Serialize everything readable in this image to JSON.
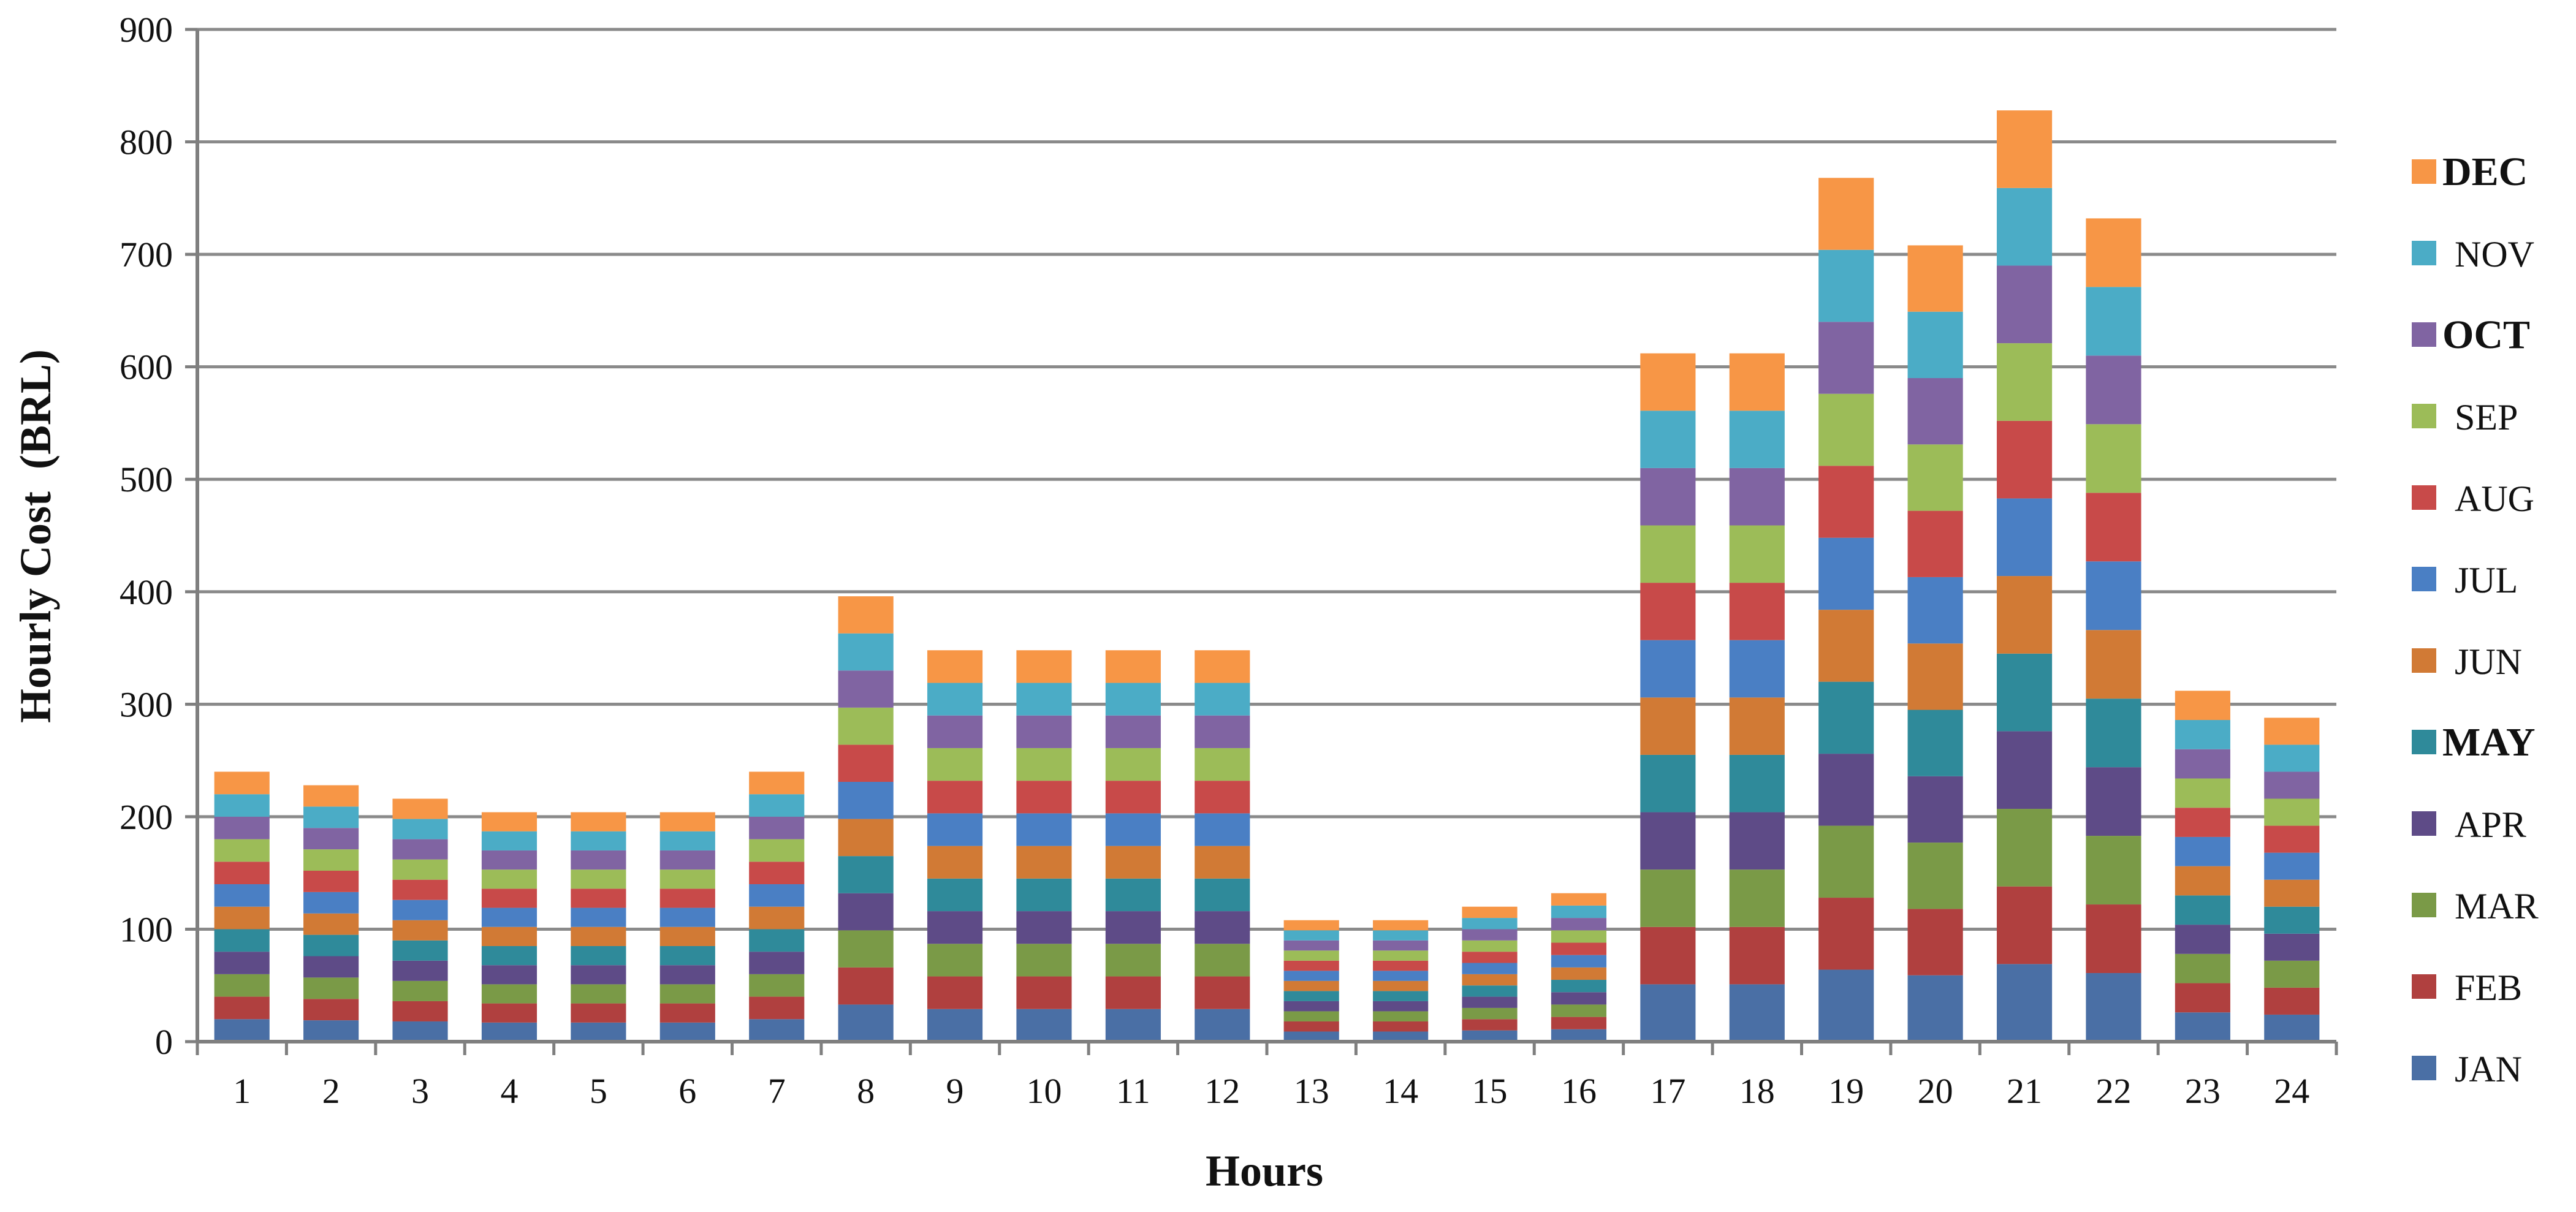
{
  "chart_data": {
    "type": "bar",
    "stacked": true,
    "title": "",
    "xlabel": "Hours",
    "ylabel": "Hourly Cost  (BRL)",
    "ylim": [
      0,
      900
    ],
    "yticks": [
      "0",
      "100",
      "200",
      "300",
      "400",
      "500",
      "600",
      "700",
      "800",
      "900"
    ],
    "grid": true,
    "legend_position": "right",
    "categories": [
      "1",
      "2",
      "3",
      "4",
      "5",
      "6",
      "7",
      "8",
      "9",
      "10",
      "11",
      "12",
      "13",
      "14",
      "15",
      "16",
      "17",
      "18",
      "19",
      "20",
      "21",
      "22",
      "23",
      "24"
    ],
    "series": [
      {
        "name": "JAN",
        "color": "#4a6fa5",
        "bold": false,
        "values": [
          20,
          19,
          18,
          17,
          17,
          17,
          20,
          33,
          29,
          29,
          29,
          29,
          9,
          9,
          10,
          11,
          51,
          51,
          64,
          59,
          69,
          61,
          26,
          24
        ]
      },
      {
        "name": "FEB",
        "color": "#b0403f",
        "bold": false,
        "values": [
          20,
          19,
          18,
          17,
          17,
          17,
          20,
          33,
          29,
          29,
          29,
          29,
          9,
          9,
          10,
          11,
          51,
          51,
          64,
          59,
          69,
          61,
          26,
          24
        ]
      },
      {
        "name": "MAR",
        "color": "#7a9a47",
        "bold": false,
        "values": [
          20,
          19,
          18,
          17,
          17,
          17,
          20,
          33,
          29,
          29,
          29,
          29,
          9,
          9,
          10,
          11,
          51,
          51,
          64,
          59,
          69,
          61,
          26,
          24
        ]
      },
      {
        "name": "APR",
        "color": "#5e4b87",
        "bold": false,
        "values": [
          20,
          19,
          18,
          17,
          17,
          17,
          20,
          33,
          29,
          29,
          29,
          29,
          9,
          9,
          10,
          11,
          51,
          51,
          64,
          59,
          69,
          61,
          26,
          24
        ]
      },
      {
        "name": "MAY",
        "color": "#2f8a9a",
        "bold": true,
        "values": [
          20,
          19,
          18,
          17,
          17,
          17,
          20,
          33,
          29,
          29,
          29,
          29,
          9,
          9,
          10,
          11,
          51,
          51,
          64,
          59,
          69,
          61,
          26,
          24
        ]
      },
      {
        "name": "JUN",
        "color": "#d17a35",
        "bold": false,
        "values": [
          20,
          19,
          18,
          17,
          17,
          17,
          20,
          33,
          29,
          29,
          29,
          29,
          9,
          9,
          10,
          11,
          51,
          51,
          64,
          59,
          69,
          61,
          26,
          24
        ]
      },
      {
        "name": "JUL",
        "color": "#4a7fc4",
        "bold": false,
        "values": [
          20,
          19,
          18,
          17,
          17,
          17,
          20,
          33,
          29,
          29,
          29,
          29,
          9,
          9,
          10,
          11,
          51,
          51,
          64,
          59,
          69,
          61,
          26,
          24
        ]
      },
      {
        "name": "AUG",
        "color": "#c84a49",
        "bold": false,
        "values": [
          20,
          19,
          18,
          17,
          17,
          17,
          20,
          33,
          29,
          29,
          29,
          29,
          9,
          9,
          10,
          11,
          51,
          51,
          64,
          59,
          69,
          61,
          26,
          24
        ]
      },
      {
        "name": "SEP",
        "color": "#9cbc58",
        "bold": false,
        "values": [
          20,
          19,
          18,
          17,
          17,
          17,
          20,
          33,
          29,
          29,
          29,
          29,
          9,
          9,
          10,
          11,
          51,
          51,
          64,
          59,
          69,
          61,
          26,
          24
        ]
      },
      {
        "name": "OCT",
        "color": "#8064a2",
        "bold": true,
        "values": [
          20,
          19,
          18,
          17,
          17,
          17,
          20,
          33,
          29,
          29,
          29,
          29,
          9,
          9,
          10,
          11,
          51,
          51,
          64,
          59,
          69,
          61,
          26,
          24
        ]
      },
      {
        "name": "NOV",
        "color": "#4bacc6",
        "bold": false,
        "values": [
          20,
          19,
          18,
          17,
          17,
          17,
          20,
          33,
          29,
          29,
          29,
          29,
          9,
          9,
          10,
          11,
          51,
          51,
          64,
          59,
          69,
          61,
          26,
          24
        ]
      },
      {
        "name": "DEC",
        "color": "#f79646",
        "bold": true,
        "values": [
          20,
          19,
          18,
          17,
          17,
          17,
          20,
          33,
          29,
          29,
          29,
          29,
          9,
          9,
          10,
          11,
          51,
          51,
          64,
          59,
          69,
          61,
          26,
          24
        ]
      }
    ]
  }
}
